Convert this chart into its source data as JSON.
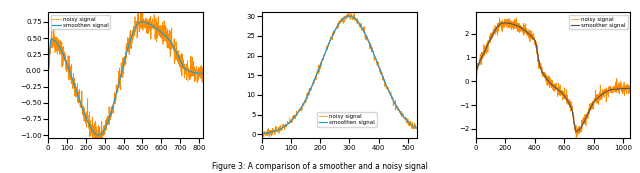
{
  "plot1": {
    "x_range": [
      0,
      820
    ],
    "y_range": [
      -1.05,
      0.9
    ],
    "yticks": [
      -1.0,
      -0.75,
      -0.5,
      -0.25,
      0.0,
      0.25,
      0.5,
      0.75
    ],
    "xticks": [
      0,
      100,
      200,
      300,
      400,
      500,
      600,
      700,
      800
    ],
    "legend_loc": "upper left",
    "legend_labels": [
      "smoothen signal",
      "noisy signal"
    ],
    "smooth_color": "#1f9bcf",
    "noisy_color": "#ff8c00",
    "n_points": 820,
    "noise_std": 0.09
  },
  "plot2": {
    "x_range": [
      0,
      530
    ],
    "y_range": [
      -1,
      31
    ],
    "yticks": [
      0,
      5,
      10,
      15,
      20,
      25,
      30
    ],
    "xticks": [
      0,
      100,
      200,
      300,
      400,
      500
    ],
    "legend_loc": "lower right",
    "legend_labels": [
      "smoothen signal",
      "noisy signal"
    ],
    "smooth_color": "#1f9bcf",
    "noisy_color": "#ff8c00",
    "n_points": 530,
    "noise_std": 0.5
  },
  "plot3": {
    "x_range": [
      0,
      1050
    ],
    "y_range": [
      -2.4,
      2.9
    ],
    "yticks": [
      -2,
      -1,
      0,
      1,
      2
    ],
    "xticks": [
      0,
      200,
      400,
      600,
      800,
      1000
    ],
    "legend_loc": "upper right",
    "legend_labels": [
      "smoother signal",
      "noisy signal"
    ],
    "smooth_color": "#555555",
    "noisy_color": "#ff8c00",
    "n_points": 1050,
    "noise_std": 0.12
  },
  "caption": "Figure 3: A comparison of a smoother and a noisy signal"
}
